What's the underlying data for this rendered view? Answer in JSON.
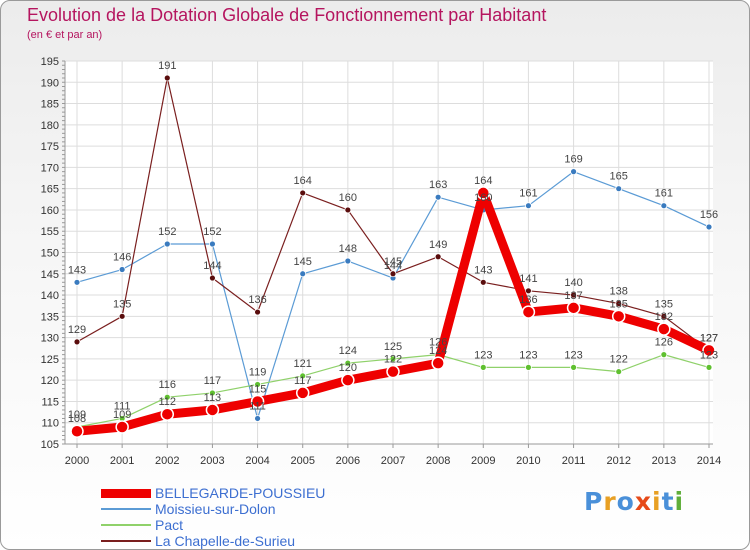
{
  "title": "Evolution de la Dotation Globale de Fonctionnement par Habitant",
  "subtitle": "(en € et par an)",
  "logo": "Proxiti",
  "chart_data": {
    "type": "line",
    "title": "Evolution de la Dotation Globale de Fonctionnement par Habitant",
    "subtitle": "(en € et par an)",
    "xlabel": "",
    "ylabel": "",
    "ylim": [
      105,
      195
    ],
    "yticks": [
      105,
      110,
      115,
      120,
      125,
      130,
      135,
      140,
      145,
      150,
      155,
      160,
      165,
      170,
      175,
      180,
      185,
      190,
      195
    ],
    "grid": true,
    "legend_position": "bottom-left",
    "categories": [
      "2000",
      "2001",
      "2002",
      "2003",
      "2004",
      "2005",
      "2006",
      "2007",
      "2008",
      "2009",
      "2010",
      "2011",
      "2012",
      "2013",
      "2014"
    ],
    "series": [
      {
        "name": "BELLEGARDE-POUSSIEU",
        "color": "#ee0000",
        "values": [
          108,
          109,
          112,
          113,
          115,
          117,
          120,
          122,
          124,
          164,
          136,
          137,
          135,
          132,
          127
        ]
      },
      {
        "name": "Moissieu-sur-Dolon",
        "color": "#5b9bd5",
        "values": [
          143,
          146,
          152,
          152,
          111,
          145,
          148,
          144,
          163,
          160,
          161,
          169,
          165,
          161,
          156
        ]
      },
      {
        "name": "Pact",
        "color": "#8fd16a",
        "values": [
          109,
          111,
          116,
          117,
          119,
          121,
          124,
          125,
          126,
          123,
          123,
          123,
          122,
          126,
          123
        ]
      },
      {
        "name": "La Chapelle-de-Surieu",
        "color": "#7a1f1f",
        "values": [
          129,
          135,
          191,
          144,
          136,
          164,
          160,
          145,
          149,
          143,
          141,
          140,
          138,
          135,
          127
        ]
      }
    ]
  }
}
